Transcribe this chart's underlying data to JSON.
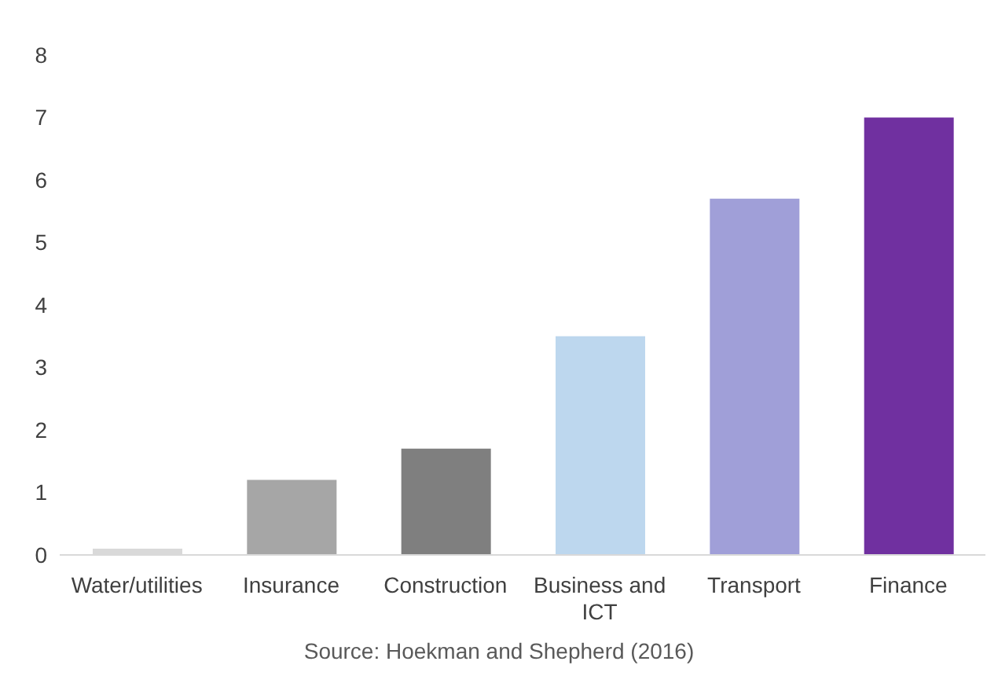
{
  "chart_data": {
    "type": "bar",
    "categories": [
      "Water/utilities",
      "Insurance",
      "Construction",
      "Business and ICT",
      "Transport",
      "Finance"
    ],
    "values": [
      0.1,
      1.2,
      1.7,
      3.5,
      5.7,
      7.0
    ],
    "colors": [
      "#d9d9d9",
      "#a6a6a6",
      "#7f7f7f",
      "#bdd7ee",
      "#a09fd8",
      "#7030a0"
    ],
    "ylim": [
      0,
      8
    ],
    "yticks": [
      0,
      1,
      2,
      3,
      4,
      5,
      6,
      7,
      8
    ],
    "grid": false,
    "annotations": [
      "Source: Hoekman and Shepherd (2016)"
    ]
  }
}
